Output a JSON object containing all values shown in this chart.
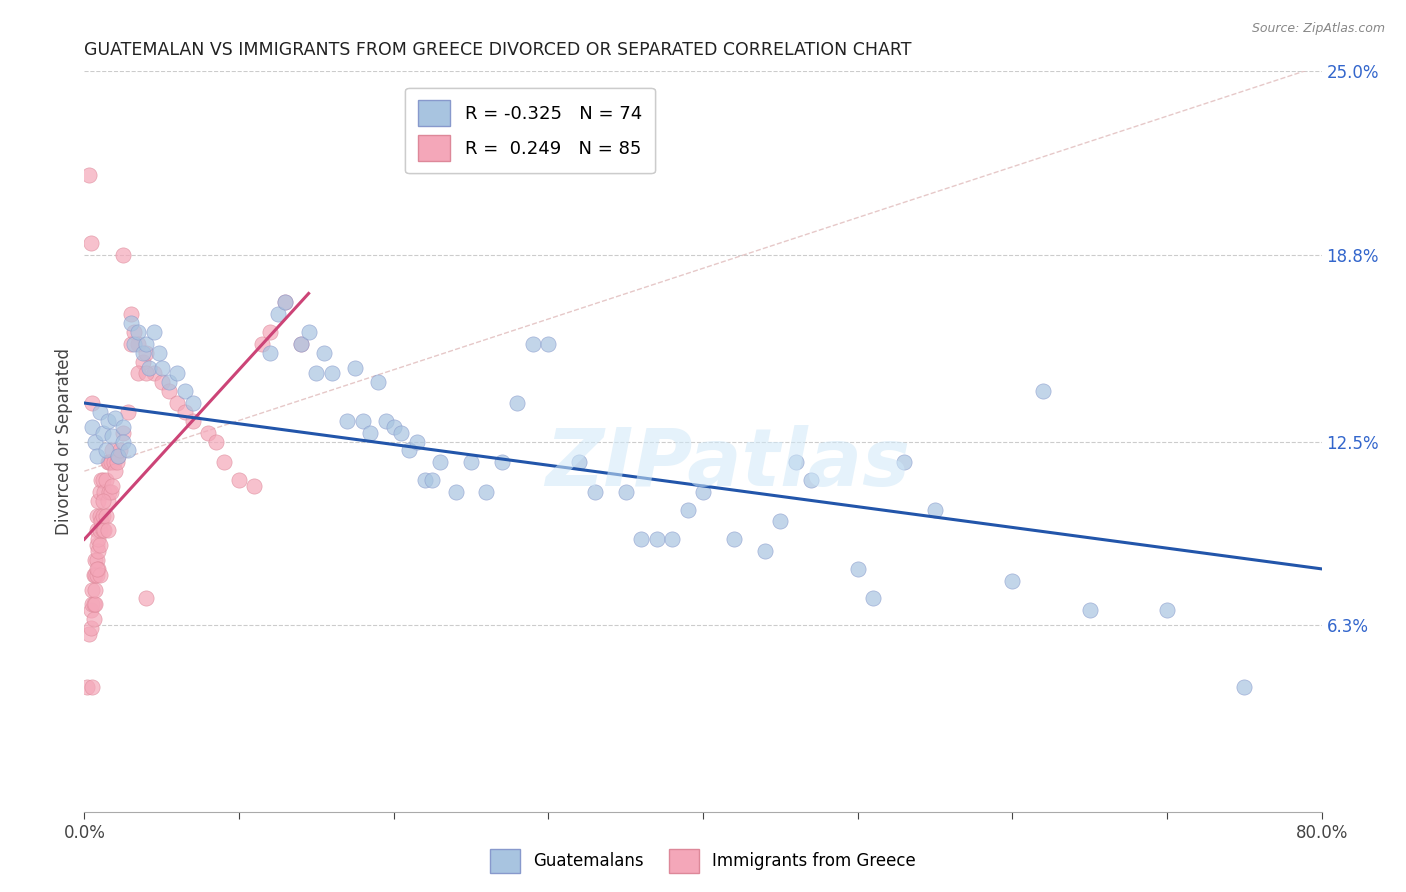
{
  "title": "GUATEMALAN VS IMMIGRANTS FROM GREECE DIVORCED OR SEPARATED CORRELATION CHART",
  "source": "Source: ZipAtlas.com",
  "ylabel": "Divorced or Separated",
  "x_min": 0.0,
  "x_max": 0.8,
  "y_min": 0.0,
  "y_max": 0.25,
  "y_ticks_right": [
    0.063,
    0.125,
    0.188,
    0.25
  ],
  "y_tick_labels_right": [
    "6.3%",
    "12.5%",
    "18.8%",
    "25.0%"
  ],
  "legend_blue_r": "-0.325",
  "legend_blue_n": "74",
  "legend_pink_r": " 0.249",
  "legend_pink_n": "85",
  "blue_color": "#A8C4E0",
  "pink_color": "#F4A7B9",
  "blue_line_color": "#2255AA",
  "pink_line_color": "#CC4477",
  "diagonal_color": "#E0BBBB",
  "watermark": "ZIPatlas",
  "blue_scatter_x": [
    0.005,
    0.007,
    0.008,
    0.01,
    0.012,
    0.014,
    0.015,
    0.018,
    0.02,
    0.022,
    0.025,
    0.025,
    0.028,
    0.03,
    0.032,
    0.035,
    0.038,
    0.04,
    0.042,
    0.045,
    0.048,
    0.05,
    0.055,
    0.06,
    0.065,
    0.07,
    0.12,
    0.125,
    0.13,
    0.14,
    0.145,
    0.15,
    0.155,
    0.16,
    0.17,
    0.175,
    0.18,
    0.185,
    0.19,
    0.195,
    0.2,
    0.205,
    0.21,
    0.215,
    0.22,
    0.225,
    0.23,
    0.24,
    0.25,
    0.26,
    0.27,
    0.28,
    0.29,
    0.3,
    0.32,
    0.33,
    0.35,
    0.36,
    0.37,
    0.38,
    0.39,
    0.4,
    0.42,
    0.44,
    0.45,
    0.46,
    0.47,
    0.5,
    0.51,
    0.53,
    0.55,
    0.6,
    0.62,
    0.65,
    0.7,
    0.75
  ],
  "blue_scatter_y": [
    0.13,
    0.125,
    0.12,
    0.135,
    0.128,
    0.122,
    0.132,
    0.127,
    0.133,
    0.12,
    0.13,
    0.125,
    0.122,
    0.165,
    0.158,
    0.162,
    0.155,
    0.158,
    0.15,
    0.162,
    0.155,
    0.15,
    0.145,
    0.148,
    0.142,
    0.138,
    0.155,
    0.168,
    0.172,
    0.158,
    0.162,
    0.148,
    0.155,
    0.148,
    0.132,
    0.15,
    0.132,
    0.128,
    0.145,
    0.132,
    0.13,
    0.128,
    0.122,
    0.125,
    0.112,
    0.112,
    0.118,
    0.108,
    0.118,
    0.108,
    0.118,
    0.138,
    0.158,
    0.158,
    0.118,
    0.108,
    0.108,
    0.092,
    0.092,
    0.092,
    0.102,
    0.108,
    0.092,
    0.088,
    0.098,
    0.118,
    0.112,
    0.082,
    0.072,
    0.118,
    0.102,
    0.078,
    0.142,
    0.068,
    0.068,
    0.042
  ],
  "pink_scatter_x": [
    0.002,
    0.003,
    0.004,
    0.004,
    0.005,
    0.005,
    0.005,
    0.006,
    0.006,
    0.006,
    0.007,
    0.007,
    0.007,
    0.007,
    0.008,
    0.008,
    0.008,
    0.008,
    0.008,
    0.009,
    0.009,
    0.009,
    0.009,
    0.01,
    0.01,
    0.01,
    0.01,
    0.01,
    0.011,
    0.011,
    0.012,
    0.012,
    0.012,
    0.013,
    0.013,
    0.014,
    0.014,
    0.015,
    0.015,
    0.015,
    0.016,
    0.016,
    0.017,
    0.017,
    0.018,
    0.018,
    0.019,
    0.02,
    0.021,
    0.022,
    0.023,
    0.025,
    0.028,
    0.03,
    0.032,
    0.035,
    0.038,
    0.04,
    0.045,
    0.05,
    0.055,
    0.06,
    0.065,
    0.07,
    0.08,
    0.085,
    0.09,
    0.1,
    0.11,
    0.115,
    0.12,
    0.13,
    0.14,
    0.025,
    0.03,
    0.035,
    0.04,
    0.003,
    0.004,
    0.04,
    0.005,
    0.008,
    0.012
  ],
  "pink_scatter_y": [
    0.042,
    0.06,
    0.062,
    0.068,
    0.07,
    0.075,
    0.042,
    0.065,
    0.07,
    0.08,
    0.07,
    0.075,
    0.08,
    0.085,
    0.08,
    0.085,
    0.09,
    0.095,
    0.1,
    0.082,
    0.088,
    0.092,
    0.105,
    0.08,
    0.09,
    0.095,
    0.1,
    0.108,
    0.098,
    0.112,
    0.095,
    0.1,
    0.112,
    0.095,
    0.108,
    0.1,
    0.112,
    0.095,
    0.105,
    0.118,
    0.108,
    0.118,
    0.108,
    0.118,
    0.11,
    0.122,
    0.118,
    0.115,
    0.118,
    0.12,
    0.122,
    0.128,
    0.135,
    0.168,
    0.162,
    0.158,
    0.152,
    0.155,
    0.148,
    0.145,
    0.142,
    0.138,
    0.135,
    0.132,
    0.128,
    0.125,
    0.118,
    0.112,
    0.11,
    0.158,
    0.162,
    0.172,
    0.158,
    0.188,
    0.158,
    0.148,
    0.148,
    0.215,
    0.192,
    0.072,
    0.138,
    0.082,
    0.105
  ],
  "blue_line_x": [
    0.0,
    0.8
  ],
  "blue_line_y": [
    0.138,
    0.082
  ],
  "pink_line_x": [
    0.0,
    0.145
  ],
  "pink_line_y": [
    0.092,
    0.175
  ],
  "diagonal_line_x": [
    0.0,
    0.8
  ],
  "diagonal_line_y": [
    0.115,
    0.252
  ]
}
